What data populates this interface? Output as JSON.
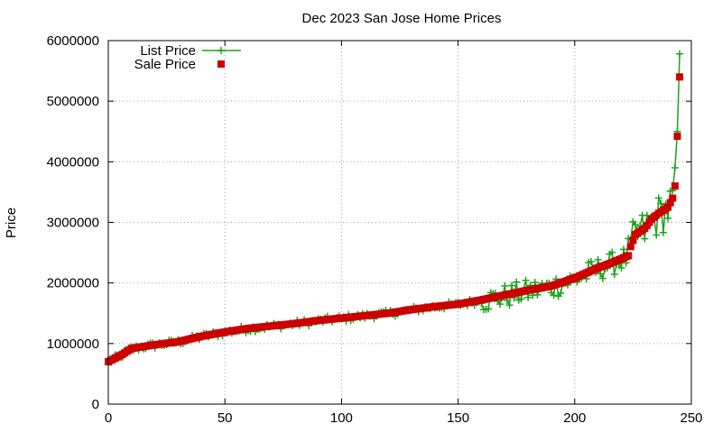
{
  "chart_data": {
    "type": "line",
    "title": "Dec 2023 San Jose Home Prices",
    "xlabel": "",
    "ylabel": "Price",
    "xlim": [
      0,
      250
    ],
    "ylim": [
      0,
      6000000
    ],
    "x_ticks": [
      "0",
      "50",
      "100",
      "150",
      "200",
      "250"
    ],
    "y_ticks": [
      "0",
      "1000000",
      "2000000",
      "3000000",
      "4000000",
      "5000000",
      "6000000"
    ],
    "grid": true,
    "legend_position": "top-left",
    "sale_anchors": [
      [
        0,
        700000
      ],
      [
        3,
        760000
      ],
      [
        6,
        820000
      ],
      [
        10,
        920000
      ],
      [
        20,
        980000
      ],
      [
        30,
        1030000
      ],
      [
        40,
        1120000
      ],
      [
        50,
        1190000
      ],
      [
        60,
        1250000
      ],
      [
        70,
        1290000
      ],
      [
        80,
        1330000
      ],
      [
        90,
        1380000
      ],
      [
        100,
        1420000
      ],
      [
        110,
        1460000
      ],
      [
        120,
        1500000
      ],
      [
        130,
        1560000
      ],
      [
        140,
        1610000
      ],
      [
        150,
        1650000
      ],
      [
        160,
        1720000
      ],
      [
        170,
        1800000
      ],
      [
        180,
        1880000
      ],
      [
        190,
        1950000
      ],
      [
        200,
        2080000
      ],
      [
        210,
        2250000
      ],
      [
        215,
        2320000
      ],
      [
        220,
        2400000
      ],
      [
        223,
        2450000
      ],
      [
        224,
        2600000
      ],
      [
        226,
        2800000
      ],
      [
        230,
        2900000
      ],
      [
        233,
        3050000
      ],
      [
        236,
        3150000
      ],
      [
        240,
        3250000
      ],
      [
        242,
        3400000
      ],
      [
        243,
        3600000
      ],
      [
        244,
        4420000
      ],
      [
        245,
        5400000
      ]
    ],
    "series": [
      {
        "name": "List Price",
        "color": "#1aa31a",
        "style": "line+plus"
      },
      {
        "name": "Sale Price",
        "color": "#cc0000",
        "style": "square"
      }
    ]
  }
}
